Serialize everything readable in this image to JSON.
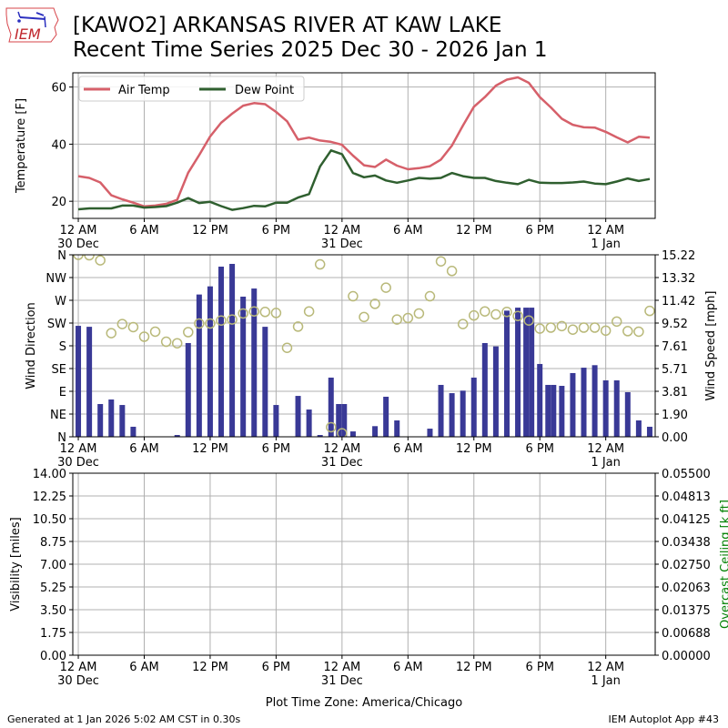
{
  "header": {
    "title_line1": "[KAWO2] ARKANSAS RIVER  AT KAW LAKE",
    "title_line2": "Recent Time Series 2025 Dec 30 - 2026 Jan 1",
    "logo_text": "IEM"
  },
  "footer": {
    "generated": "Generated at 1 Jan 2026 5:02 AM CST in 0.30s",
    "app": "IEM Autoplot App #43",
    "timezone_label": "Plot Time Zone: America/Chicago"
  },
  "colors": {
    "air_temp": "#d6606a",
    "dew_point": "#2f5f2f",
    "wind_speed_bar": "#393996",
    "wind_dir_marker": "#b9b97a",
    "grid": "#b0b0b0",
    "ceiling_label": "#008000"
  },
  "chart_data": [
    {
      "type": "line",
      "name": "temperature",
      "ylabel": "Temperature [F]",
      "ylim": [
        14,
        65
      ],
      "yticks": [
        20,
        40,
        60
      ],
      "xlim_hours": [
        -0.5,
        52.5
      ],
      "xticks": [
        {
          "hour": 0,
          "label": "12 AM",
          "sublabel": "30 Dec"
        },
        {
          "hour": 6,
          "label": "6 AM",
          "sublabel": ""
        },
        {
          "hour": 12,
          "label": "12 PM",
          "sublabel": ""
        },
        {
          "hour": 18,
          "label": "6 PM",
          "sublabel": ""
        },
        {
          "hour": 24,
          "label": "12 AM",
          "sublabel": "31 Dec"
        },
        {
          "hour": 30,
          "label": "6 AM",
          "sublabel": ""
        },
        {
          "hour": 36,
          "label": "12 PM",
          "sublabel": ""
        },
        {
          "hour": 42,
          "label": "6 PM",
          "sublabel": ""
        },
        {
          "hour": 48,
          "label": "12 AM",
          "sublabel": "1 Jan"
        }
      ],
      "grid": true,
      "legend": {
        "placement": "top-left",
        "entries": [
          "Air Temp",
          "Dew Point"
        ]
      },
      "series": [
        {
          "name": "Air Temp",
          "values": [
            28.8,
            28.2,
            26.6,
            22.1,
            20.7,
            19.5,
            18.2,
            18.5,
            19.1,
            20.5,
            30.0,
            36.2,
            42.7,
            47.5,
            50.7,
            53.5,
            54.4,
            54.0,
            51.3,
            48.0,
            41.6,
            42.3,
            41.3,
            40.8,
            39.8,
            36.0,
            32.6,
            32.0,
            34.6,
            32.5,
            31.2,
            31.6,
            32.3,
            34.6,
            39.5,
            46.5,
            53.1,
            56.5,
            60.5,
            62.6,
            63.4,
            61.5,
            56.5,
            52.9,
            48.9,
            46.8,
            45.9,
            45.8,
            44.3,
            42.4,
            40.6,
            42.6,
            42.3
          ]
        },
        {
          "name": "Dew Point",
          "values": [
            17.2,
            17.5,
            17.5,
            17.5,
            18.5,
            18.5,
            17.8,
            18.0,
            18.3,
            19.5,
            21.1,
            19.4,
            19.8,
            18.3,
            17.0,
            17.6,
            18.4,
            18.2,
            19.5,
            19.5,
            21.3,
            22.5,
            32.2,
            37.8,
            36.5,
            29.9,
            28.4,
            29.0,
            27.3,
            26.5,
            27.3,
            28.2,
            27.9,
            28.2,
            29.9,
            28.8,
            28.2,
            28.2,
            27.1,
            26.5,
            26.0,
            27.5,
            26.5,
            26.4,
            26.4,
            26.6,
            26.9,
            26.2,
            26.0,
            26.9,
            28.0,
            27.1,
            27.8
          ]
        }
      ]
    },
    {
      "type": "bar",
      "name": "wind",
      "ylabel_left": "Wind Direction",
      "ylabel_right": "Wind Speed [mph]",
      "dir_ticks": [
        "N",
        "NE",
        "E",
        "SE",
        "S",
        "SW",
        "W",
        "NW",
        "N"
      ],
      "speed_ylim": [
        0,
        15.22
      ],
      "speed_ticks": [
        "0.00",
        "1.90",
        "3.81",
        "5.71",
        "7.61",
        "9.52",
        "11.42",
        "13.32",
        "15.22"
      ],
      "grid": true,
      "wind_speed": {
        "hours": [
          0,
          1,
          2,
          3,
          4,
          5,
          9,
          10,
          11,
          12,
          13,
          14,
          15,
          16,
          17,
          18,
          20,
          21,
          22,
          23,
          23.7,
          24.2,
          25,
          27,
          28,
          29,
          32,
          33,
          34,
          35,
          36,
          37,
          38,
          39,
          40,
          40.75,
          41.25,
          42,
          42.75,
          43.25,
          44,
          45,
          46,
          47,
          48,
          49,
          50,
          51,
          52
        ],
        "values": [
          9.28,
          9.2,
          2.74,
          3.12,
          2.66,
          0.84,
          0.15,
          7.84,
          11.9,
          12.58,
          14.23,
          14.46,
          11.72,
          12.4,
          9.2,
          2.66,
          3.42,
          2.28,
          0.15,
          4.95,
          2.74,
          2.74,
          0.45,
          0.89,
          3.35,
          1.37,
          0.68,
          4.34,
          3.65,
          3.86,
          4.95,
          7.84,
          7.56,
          10.55,
          10.8,
          10.8,
          10.8,
          6.09,
          4.34,
          4.34,
          4.26,
          5.33,
          5.78,
          5.99,
          4.72,
          4.72,
          3.73,
          1.37,
          0.84
        ]
      },
      "wind_direction_deg": {
        "hours": [
          0,
          1,
          2,
          3,
          4,
          5,
          6,
          7,
          8,
          9,
          10,
          11,
          12,
          13,
          14,
          15,
          16,
          17,
          18,
          19,
          20,
          21,
          22,
          23,
          24,
          25,
          26,
          27,
          28,
          29,
          30,
          31,
          32,
          33,
          34,
          35,
          36,
          37,
          38,
          39,
          40,
          41,
          42,
          43,
          44,
          45,
          46,
          47,
          48,
          49,
          50,
          51,
          52
        ],
        "values": [
          360,
          359,
          349,
          205,
          223,
          217,
          198,
          208,
          188,
          185,
          207,
          224,
          224,
          230,
          232,
          244,
          248,
          247,
          245,
          176,
          218,
          248,
          341,
          19,
          7,
          278,
          237,
          263,
          295,
          232,
          235,
          244,
          278,
          347,
          328,
          223,
          240,
          248,
          242,
          247,
          239,
          230,
          214,
          216,
          219,
          212,
          216,
          216,
          210,
          228,
          209,
          208,
          249
        ]
      }
    },
    {
      "type": "line",
      "name": "visibility_ceiling",
      "ylabel_left": "Visibility [miles]",
      "ylabel_right": "Overcast Ceiling [k ft]",
      "vis_ticks": [
        "0.00",
        "1.75",
        "3.50",
        "5.25",
        "7.00",
        "8.75",
        "10.50",
        "12.25",
        "14.00"
      ],
      "ceiling_ticks": [
        "0.00000",
        "0.00688",
        "0.01375",
        "0.02063",
        "0.02750",
        "0.03438",
        "0.04125",
        "0.04813",
        "0.05500"
      ],
      "vis_ylim": [
        0,
        14
      ],
      "ceiling_ylim": [
        0,
        0.055
      ],
      "grid": true,
      "series": []
    }
  ]
}
